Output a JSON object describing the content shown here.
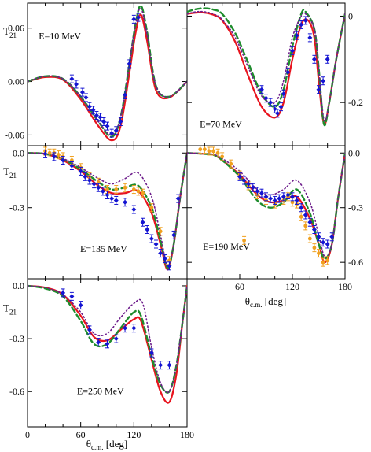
{
  "figure": {
    "x_axis_label_main": "θ",
    "x_axis_label_sub": "c.m.",
    "x_axis_label_unit": " [deg]",
    "y_axis_label_main": "T",
    "y_axis_label_sub": "21"
  },
  "colors": {
    "solid": "#e8141e",
    "dashed": "#1e8c2d",
    "dotted": "#6e1e8c",
    "blue_data": "#1414d2",
    "orange_data": "#f0a01e"
  },
  "chart_data": [
    {
      "type": "line",
      "panel": "top-left",
      "annotation": "E=10 MeV",
      "xlim": [
        0,
        180
      ],
      "ylim": [
        -0.072,
        0.088
      ],
      "y_ticks": [
        0.06,
        0.0,
        -0.06
      ],
      "y_tick_labels": [
        "0.06",
        "0.00",
        "-0.06"
      ],
      "y_label_side": "left",
      "show_y_axis_title": true,
      "x_tick_labels_shown": false,
      "series": [
        {
          "style": "solid",
          "x": [
            0,
            20,
            40,
            60,
            80,
            95,
            105,
            115,
            122,
            128,
            135,
            145,
            160,
            180
          ],
          "y": [
            0,
            0.005,
            0.002,
            -0.02,
            -0.05,
            -0.066,
            -0.05,
            0.01,
            0.055,
            0.075,
            0.045,
            -0.01,
            -0.018,
            0
          ]
        },
        {
          "style": "dashed",
          "x": [
            0,
            20,
            40,
            60,
            80,
            95,
            105,
            115,
            122,
            128,
            135,
            145,
            160,
            180
          ],
          "y": [
            0,
            0.006,
            0.003,
            -0.017,
            -0.045,
            -0.062,
            -0.04,
            0.02,
            0.065,
            0.085,
            0.055,
            -0.005,
            -0.017,
            0
          ]
        },
        {
          "style": "dotted",
          "x": [
            0,
            20,
            40,
            60,
            80,
            95,
            105,
            115,
            122,
            128,
            135,
            145,
            160,
            180
          ],
          "y": [
            0,
            0.006,
            0.003,
            -0.017,
            -0.045,
            -0.06,
            -0.04,
            0.02,
            0.065,
            0.082,
            0.052,
            -0.005,
            -0.017,
            0
          ]
        }
      ],
      "points_blue": [
        [
          50,
          0.003
        ],
        [
          55,
          -0.003
        ],
        [
          62,
          -0.012
        ],
        [
          66,
          -0.018
        ],
        [
          70,
          -0.028
        ],
        [
          74,
          -0.032
        ],
        [
          78,
          -0.038
        ],
        [
          82,
          -0.04
        ],
        [
          86,
          -0.045
        ],
        [
          90,
          -0.05
        ],
        [
          95,
          -0.058
        ],
        [
          100,
          -0.055
        ],
        [
          105,
          -0.045
        ],
        [
          110,
          -0.015
        ],
        [
          115,
          0.02
        ],
        [
          120,
          0.07
        ],
        [
          125,
          0.072
        ]
      ],
      "points_orange": []
    },
    {
      "type": "line",
      "panel": "top-right",
      "annotation": "E=70 MeV",
      "xlim": [
        0,
        180
      ],
      "ylim": [
        -0.3,
        0.03
      ],
      "y_ticks": [
        0.0,
        -0.2
      ],
      "y_tick_labels": [
        "0",
        "-0.2"
      ],
      "y_label_side": "right",
      "show_y_axis_title": false,
      "x_tick_labels_shown": false,
      "series": [
        {
          "style": "solid",
          "x": [
            0,
            10,
            20,
            30,
            40,
            55,
            70,
            85,
            100,
            110,
            120,
            130,
            138,
            145,
            150,
            156,
            162,
            170,
            180
          ],
          "y": [
            0.005,
            0.008,
            0.008,
            0.003,
            -0.01,
            -0.06,
            -0.14,
            -0.21,
            -0.235,
            -0.2,
            -0.1,
            -0.02,
            -0.01,
            -0.05,
            -0.15,
            -0.25,
            -0.2,
            -0.1,
            0.005
          ]
        },
        {
          "style": "dashed",
          "x": [
            0,
            10,
            20,
            30,
            40,
            55,
            70,
            85,
            100,
            110,
            120,
            130,
            135,
            145,
            150,
            156,
            162,
            170,
            180
          ],
          "y": [
            0.01,
            0.016,
            0.018,
            0.015,
            0.005,
            -0.04,
            -0.11,
            -0.18,
            -0.21,
            -0.17,
            -0.07,
            0.005,
            0.01,
            -0.03,
            -0.12,
            -0.25,
            -0.2,
            -0.1,
            0.005
          ]
        },
        {
          "style": "dotted",
          "x": [
            0,
            10,
            20,
            30,
            40,
            55,
            70,
            85,
            100,
            110,
            120,
            130,
            135,
            145,
            150,
            156,
            162,
            170,
            180
          ],
          "y": [
            0.005,
            0.01,
            0.01,
            0.005,
            -0.008,
            -0.05,
            -0.12,
            -0.185,
            -0.2,
            -0.15,
            -0.05,
            0.0,
            0.005,
            -0.03,
            -0.12,
            -0.24,
            -0.2,
            -0.1,
            0.005
          ]
        }
      ],
      "points_blue": [
        [
          85,
          -0.17
        ],
        [
          90,
          -0.19
        ],
        [
          95,
          -0.2
        ],
        [
          100,
          -0.215
        ],
        [
          103,
          -0.225
        ],
        [
          107,
          -0.21
        ],
        [
          110,
          -0.18
        ],
        [
          115,
          -0.13
        ],
        [
          120,
          -0.08
        ],
        [
          125,
          -0.045
        ],
        [
          130,
          -0.02
        ],
        [
          135,
          -0.01
        ],
        [
          140,
          -0.05
        ],
        [
          145,
          -0.1
        ],
        [
          150,
          -0.17
        ],
        [
          155,
          -0.15
        ],
        [
          160,
          -0.1
        ]
      ],
      "points_orange": []
    },
    {
      "type": "line",
      "panel": "middle-left",
      "annotation": "E=135 MeV",
      "xlim": [
        0,
        180
      ],
      "ylim": [
        -0.69,
        0.04
      ],
      "y_ticks": [
        0.0,
        -0.3
      ],
      "y_tick_labels": [
        "0.0",
        "-0.3"
      ],
      "y_label_side": "left",
      "show_y_axis_title": true,
      "x_tick_labels_shown": false,
      "series": [
        {
          "style": "solid",
          "x": [
            0,
            20,
            40,
            60,
            80,
            95,
            110,
            125,
            140,
            150,
            158,
            165,
            172,
            180
          ],
          "y": [
            0,
            -0.005,
            -0.04,
            -0.1,
            -0.18,
            -0.22,
            -0.22,
            -0.21,
            -0.33,
            -0.5,
            -0.64,
            -0.5,
            -0.25,
            0
          ]
        },
        {
          "style": "dashed",
          "x": [
            0,
            20,
            40,
            60,
            80,
            95,
            110,
            125,
            140,
            150,
            158,
            165,
            172,
            180
          ],
          "y": [
            0,
            -0.005,
            -0.035,
            -0.09,
            -0.16,
            -0.2,
            -0.19,
            -0.18,
            -0.3,
            -0.48,
            -0.63,
            -0.5,
            -0.25,
            0
          ]
        },
        {
          "style": "dotted",
          "x": [
            0,
            20,
            40,
            60,
            80,
            95,
            110,
            125,
            140,
            150,
            158,
            165,
            172,
            180
          ],
          "y": [
            0,
            -0.003,
            -0.03,
            -0.08,
            -0.14,
            -0.17,
            -0.14,
            -0.11,
            -0.24,
            -0.45,
            -0.62,
            -0.5,
            -0.25,
            0
          ]
        }
      ],
      "points_blue": [
        [
          20,
          -0.005
        ],
        [
          30,
          -0.02
        ],
        [
          40,
          -0.04
        ],
        [
          50,
          -0.07
        ],
        [
          60,
          -0.1
        ],
        [
          65,
          -0.13
        ],
        [
          70,
          -0.15
        ],
        [
          75,
          -0.17
        ],
        [
          80,
          -0.19
        ],
        [
          85,
          -0.21
        ],
        [
          90,
          -0.23
        ],
        [
          95,
          -0.25
        ],
        [
          100,
          -0.26
        ],
        [
          110,
          -0.27
        ],
        [
          120,
          -0.31
        ],
        [
          130,
          -0.38
        ],
        [
          135,
          -0.42
        ],
        [
          140,
          -0.47
        ],
        [
          145,
          -0.5
        ],
        [
          150,
          -0.55
        ],
        [
          155,
          -0.58
        ],
        [
          160,
          -0.62
        ],
        [
          165,
          -0.45
        ],
        [
          170,
          -0.25
        ]
      ],
      "points_orange": [
        [
          20,
          0.01
        ],
        [
          25,
          0.0
        ],
        [
          30,
          0.0
        ],
        [
          35,
          -0.01
        ],
        [
          40,
          -0.02
        ],
        [
          50,
          -0.04
        ],
        [
          60,
          -0.08
        ],
        [
          70,
          -0.13
        ],
        [
          80,
          -0.16
        ],
        [
          90,
          -0.2
        ],
        [
          100,
          -0.2
        ],
        [
          110,
          -0.19
        ],
        [
          120,
          -0.2
        ],
        [
          125,
          -0.21
        ],
        [
          130,
          -0.22
        ],
        [
          140,
          -0.3
        ],
        [
          150,
          -0.43
        ],
        [
          160,
          -0.59
        ]
      ]
    },
    {
      "type": "line",
      "panel": "middle-right",
      "annotation": "E=190 MeV",
      "xlim": [
        0,
        180
      ],
      "ylim": [
        -0.69,
        0.04
      ],
      "y_ticks": [
        0.0,
        -0.3,
        -0.6
      ],
      "y_tick_labels": [
        "0.0",
        "-0.3",
        "-0.6"
      ],
      "y_label_side": "right",
      "show_y_axis_title": false,
      "x_tick_labels_shown": true,
      "x_ticks": [
        60,
        120,
        180
      ],
      "x_tick_labels": [
        "60",
        "120",
        "180"
      ],
      "series": [
        {
          "style": "solid",
          "x": [
            0,
            20,
            30,
            40,
            60,
            80,
            95,
            110,
            125,
            140,
            150,
            157,
            165,
            172,
            180
          ],
          "y": [
            0,
            -0.005,
            -0.01,
            -0.04,
            -0.12,
            -0.23,
            -0.27,
            -0.26,
            -0.24,
            -0.36,
            -0.5,
            -0.6,
            -0.5,
            -0.25,
            0
          ]
        },
        {
          "style": "dashed",
          "x": [
            0,
            20,
            30,
            40,
            60,
            80,
            95,
            110,
            125,
            140,
            150,
            157,
            165,
            172,
            180
          ],
          "y": [
            0,
            -0.005,
            -0.01,
            -0.04,
            -0.13,
            -0.26,
            -0.3,
            -0.27,
            -0.2,
            -0.33,
            -0.5,
            -0.58,
            -0.5,
            -0.25,
            0
          ]
        },
        {
          "style": "dotted",
          "x": [
            0,
            20,
            30,
            40,
            60,
            80,
            95,
            110,
            125,
            140,
            150,
            157,
            165,
            172,
            180
          ],
          "y": [
            0,
            -0.003,
            -0.008,
            -0.03,
            -0.1,
            -0.2,
            -0.23,
            -0.2,
            -0.15,
            -0.27,
            -0.45,
            -0.57,
            -0.5,
            -0.25,
            0
          ]
        }
      ],
      "points_blue": [
        [
          60,
          -0.13
        ],
        [
          65,
          -0.15
        ],
        [
          70,
          -0.17
        ],
        [
          75,
          -0.19
        ],
        [
          80,
          -0.21
        ],
        [
          85,
          -0.22
        ],
        [
          90,
          -0.24
        ],
        [
          95,
          -0.25
        ],
        [
          100,
          -0.26
        ],
        [
          105,
          -0.25
        ],
        [
          110,
          -0.24
        ],
        [
          115,
          -0.23
        ],
        [
          120,
          -0.24
        ],
        [
          125,
          -0.26
        ],
        [
          130,
          -0.3
        ],
        [
          135,
          -0.34
        ],
        [
          140,
          -0.38
        ],
        [
          145,
          -0.42
        ],
        [
          150,
          -0.46
        ],
        [
          155,
          -0.49
        ],
        [
          160,
          -0.5
        ],
        [
          165,
          -0.46
        ]
      ],
      "points_orange": [
        [
          15,
          0.02
        ],
        [
          20,
          0.02
        ],
        [
          25,
          0.01
        ],
        [
          30,
          0.01
        ],
        [
          35,
          0.0
        ],
        [
          40,
          -0.02
        ],
        [
          50,
          -0.06
        ],
        [
          60,
          -0.12
        ],
        [
          70,
          -0.18
        ],
        [
          80,
          -0.23
        ],
        [
          90,
          -0.26
        ],
        [
          100,
          -0.28
        ],
        [
          110,
          -0.26
        ],
        [
          115,
          -0.24
        ],
        [
          120,
          -0.27
        ],
        [
          125,
          -0.28
        ],
        [
          130,
          -0.35
        ],
        [
          135,
          -0.4
        ],
        [
          140,
          -0.47
        ],
        [
          145,
          -0.52
        ],
        [
          150,
          -0.55
        ],
        [
          155,
          -0.6
        ],
        [
          160,
          -0.59
        ],
        [
          65,
          -0.48
        ]
      ]
    },
    {
      "type": "line",
      "panel": "bottom-left",
      "annotation": "E=250 MeV",
      "xlim": [
        0,
        180
      ],
      "ylim": [
        -0.8,
        0.04
      ],
      "y_ticks": [
        0.0,
        -0.3,
        -0.6
      ],
      "y_tick_labels": [
        "0.0",
        "-0.3",
        "-0.6"
      ],
      "y_label_side": "left",
      "show_y_axis_title": true,
      "x_tick_labels_shown": true,
      "x_ticks": [
        0,
        60,
        120,
        180
      ],
      "x_tick_labels": [
        "0",
        "60",
        "120",
        "180"
      ],
      "series": [
        {
          "style": "solid",
          "x": [
            0,
            20,
            40,
            60,
            75,
            90,
            105,
            120,
            128,
            140,
            150,
            160,
            168,
            175,
            180
          ],
          "y": [
            0,
            -0.01,
            -0.05,
            -0.17,
            -0.29,
            -0.31,
            -0.25,
            -0.19,
            -0.2,
            -0.42,
            -0.6,
            -0.66,
            -0.5,
            -0.2,
            0
          ]
        },
        {
          "style": "dashed",
          "x": [
            0,
            20,
            40,
            60,
            75,
            90,
            105,
            120,
            128,
            140,
            150,
            160,
            168,
            175,
            180
          ],
          "y": [
            0,
            -0.015,
            -0.06,
            -0.2,
            -0.33,
            -0.33,
            -0.24,
            -0.15,
            -0.17,
            -0.4,
            -0.56,
            -0.6,
            -0.45,
            -0.2,
            0
          ]
        },
        {
          "style": "dotted",
          "x": [
            0,
            20,
            40,
            60,
            75,
            90,
            105,
            120,
            130,
            140,
            150,
            160,
            168,
            175,
            180
          ],
          "y": [
            0,
            -0.01,
            -0.05,
            -0.15,
            -0.27,
            -0.27,
            -0.18,
            -0.1,
            -0.1,
            -0.35,
            -0.55,
            -0.6,
            -0.45,
            -0.2,
            0
          ]
        }
      ],
      "points_blue": [
        [
          40,
          -0.04
        ],
        [
          50,
          -0.06
        ],
        [
          60,
          -0.11
        ],
        [
          70,
          -0.25
        ],
        [
          80,
          -0.32
        ],
        [
          90,
          -0.33
        ],
        [
          100,
          -0.3
        ],
        [
          110,
          -0.24
        ],
        [
          120,
          -0.24
        ],
        [
          140,
          -0.38
        ],
        [
          150,
          -0.45
        ],
        [
          160,
          -0.45
        ]
      ],
      "points_orange": []
    }
  ]
}
